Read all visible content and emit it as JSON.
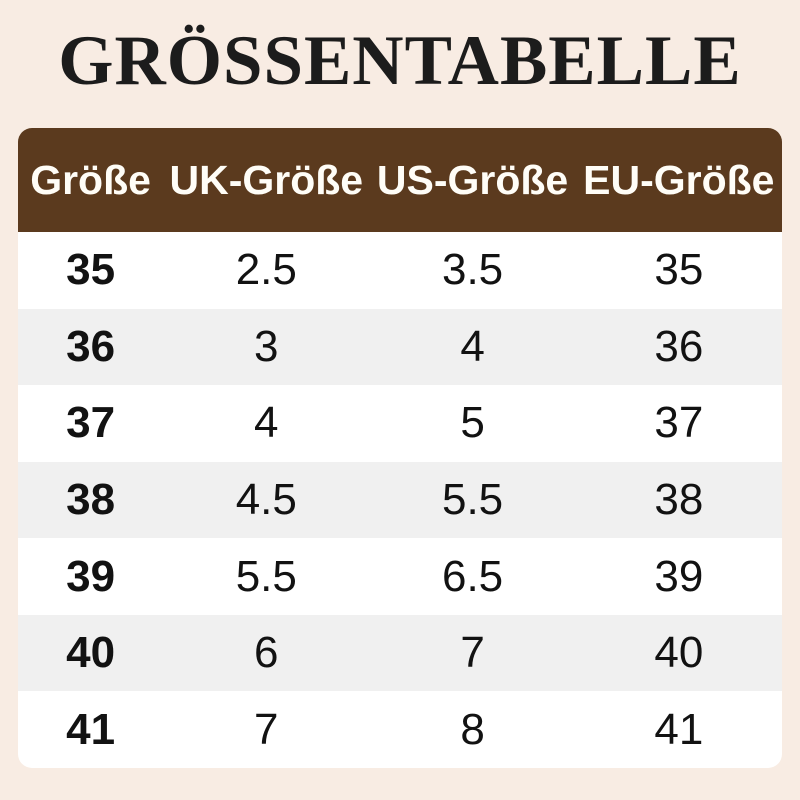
{
  "title": {
    "text": "GRÖSSENTABELLE"
  },
  "colors": {
    "page_background": "#f8ece3",
    "header_background": "#5b3a1e",
    "header_text": "#fffdf7",
    "row_odd": "#ffffff",
    "row_even": "#f0f0f0",
    "body_text": "#121212",
    "title_text": "#1c1c1c"
  },
  "chart_data": {
    "type": "table",
    "title": "GRÖSSENTABELLE",
    "columns": [
      "Größe",
      "UK-Größe",
      "US-Größe",
      "EU-Größe"
    ],
    "rows": [
      [
        "35",
        "2.5",
        "3.5",
        "35"
      ],
      [
        "36",
        "3",
        "4",
        "36"
      ],
      [
        "37",
        "4",
        "5",
        "37"
      ],
      [
        "38",
        "4.5",
        "5.5",
        "38"
      ],
      [
        "39",
        "5.5",
        "6.5",
        "39"
      ],
      [
        "40",
        "6",
        "7",
        "40"
      ],
      [
        "41",
        "7",
        "8",
        "41"
      ]
    ],
    "layout": {
      "header_style": "dark-brown rounded bar, white bold text",
      "row_striping": "white / light-gray alternating",
      "first_column_bold": true
    }
  }
}
